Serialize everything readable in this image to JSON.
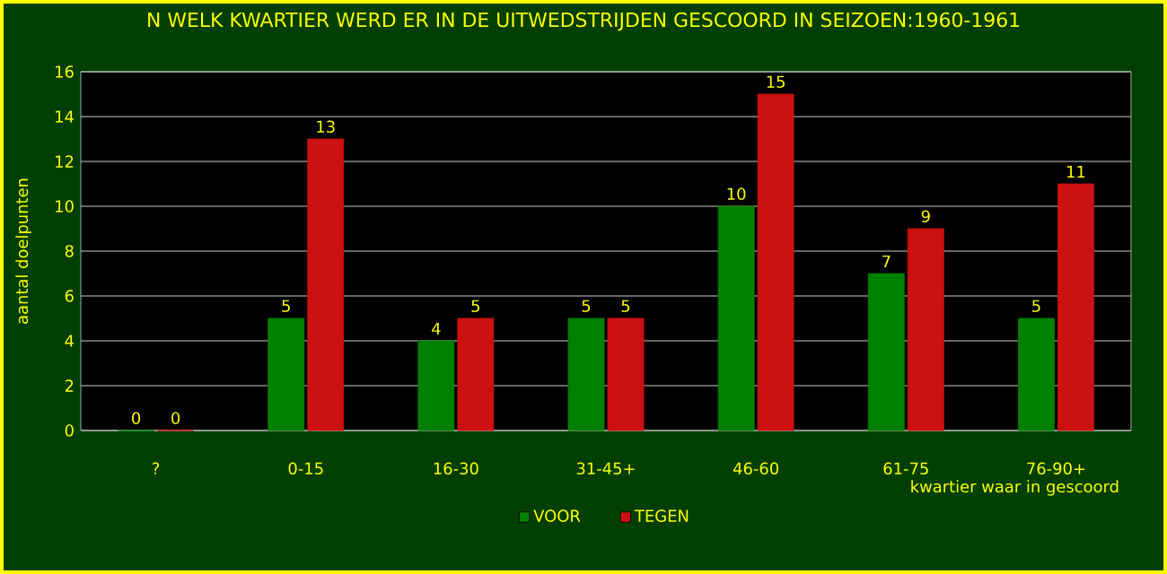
{
  "chart_data": {
    "type": "bar",
    "title": "N WELK KWARTIER WERD ER IN DE UITWEDSTRIJDEN GESCOORD IN SEIZOEN:1960-1961",
    "xlabel": "kwartier waar in gescoord",
    "ylabel": "aantal doelpunten",
    "categories": [
      "?",
      "0-15",
      "16-30",
      "31-45+",
      "46-60",
      "61-75",
      "76-90+"
    ],
    "series": [
      {
        "name": "VOOR",
        "color": "#008000",
        "values": [
          0,
          5,
          4,
          5,
          10,
          7,
          5
        ]
      },
      {
        "name": "TEGEN",
        "color": "#cc1111",
        "values": [
          0,
          13,
          5,
          5,
          15,
          9,
          11
        ]
      }
    ],
    "ylim": [
      0,
      16
    ],
    "yticks": [
      0,
      2,
      4,
      6,
      8,
      10,
      12,
      14,
      16
    ],
    "grid": "y",
    "legend": "bottom",
    "data_labels": true
  }
}
